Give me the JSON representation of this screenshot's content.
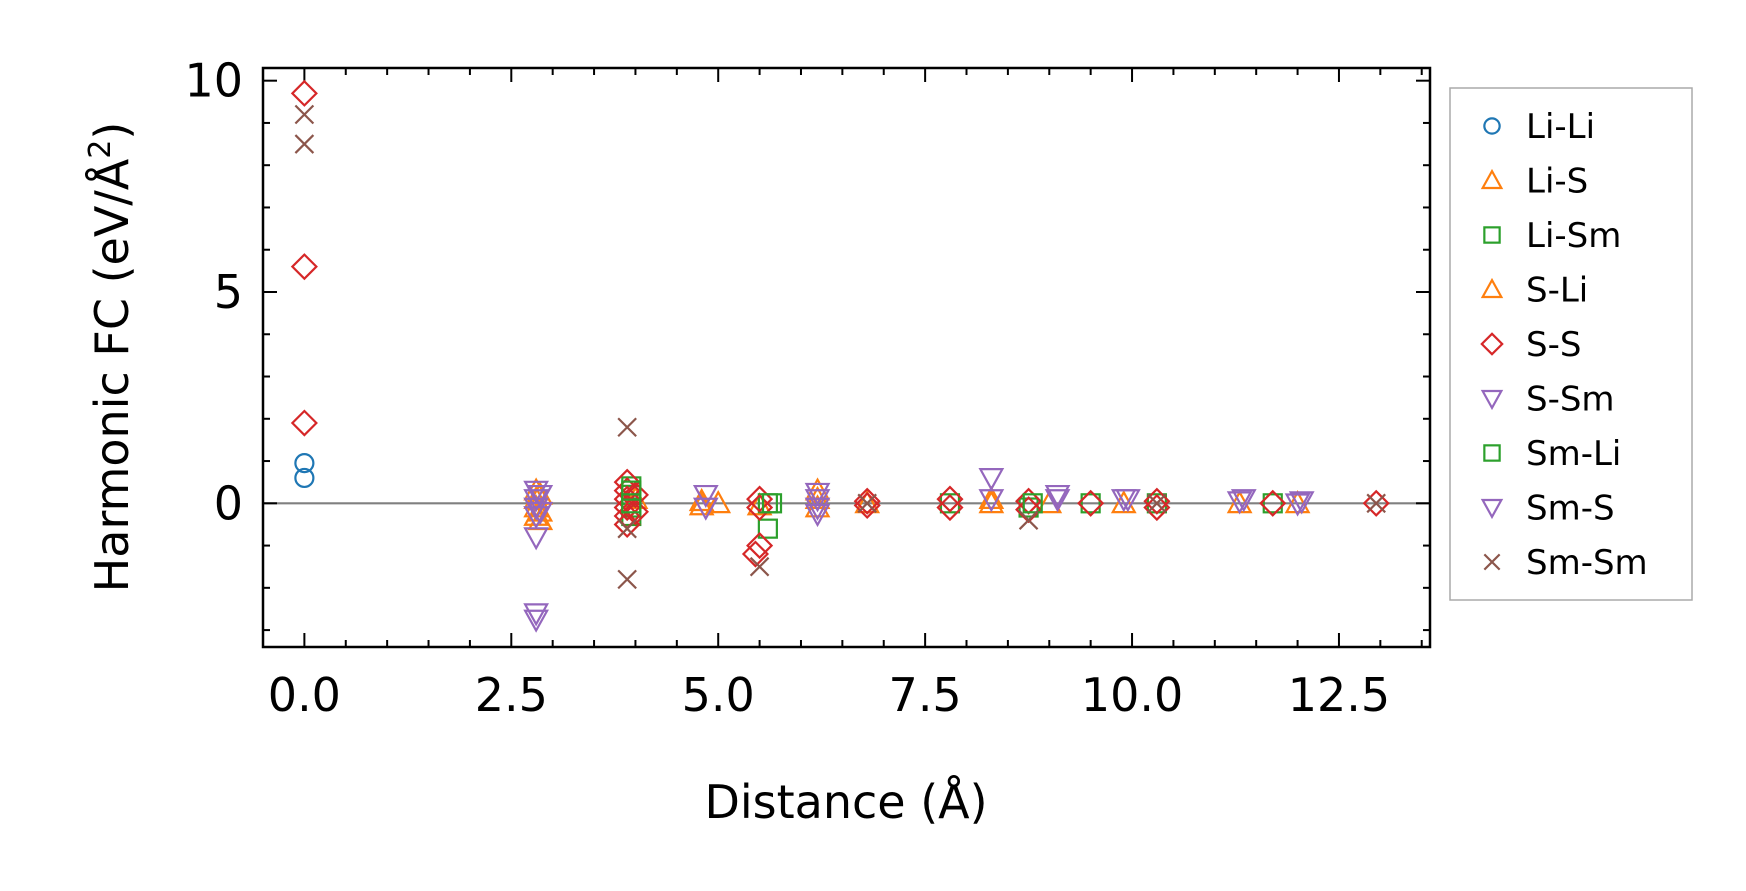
{
  "chart_data": {
    "type": "scatter",
    "title": "",
    "xlabel": "Distance (Å)",
    "ylabel": "Harmonic FC (eV/Å",
    "ylabel_sup": "2",
    "ylabel_end": ")",
    "xlim": [
      -0.5,
      13.6
    ],
    "ylim": [
      -3.4,
      10.3
    ],
    "xticks": [
      0.0,
      2.5,
      5.0,
      7.5,
      10.0,
      12.5
    ],
    "xtick_labels": [
      "0.0",
      "2.5",
      "5.0",
      "7.5",
      "10.0",
      "12.5"
    ],
    "yticks": [
      0,
      5,
      10
    ],
    "ytick_labels": [
      "0",
      "5",
      "10"
    ],
    "zero_line": true,
    "legend_position": "outside-right",
    "series": [
      {
        "name": "Li-Li",
        "marker": "circle",
        "color": "#1f77b4",
        "points": [
          [
            0.0,
            0.95
          ],
          [
            0.0,
            0.6
          ]
        ]
      },
      {
        "name": "Li-S",
        "marker": "triangle-up",
        "color": "#ff7f0e",
        "points": [
          [
            2.8,
            0.3
          ],
          [
            2.8,
            0.1
          ],
          [
            2.8,
            -0.1
          ],
          [
            2.8,
            -0.3
          ],
          [
            2.85,
            -0.4
          ],
          [
            4.8,
            -0.05
          ],
          [
            4.8,
            0.05
          ],
          [
            5.5,
            -0.05
          ],
          [
            6.2,
            0.1
          ],
          [
            6.2,
            -0.1
          ],
          [
            8.3,
            0.0
          ],
          [
            9.0,
            0.0
          ],
          [
            9.9,
            0.0
          ],
          [
            11.3,
            0.0
          ],
          [
            12.0,
            0.0
          ]
        ]
      },
      {
        "name": "Li-Sm",
        "marker": "square",
        "color": "#2ca02c",
        "points": [
          [
            3.95,
            0.4
          ],
          [
            3.95,
            0.2
          ],
          [
            3.95,
            -0.1
          ],
          [
            3.95,
            -0.3
          ],
          [
            5.6,
            0.0
          ],
          [
            5.6,
            -0.6
          ],
          [
            7.8,
            0.0
          ],
          [
            8.75,
            -0.1
          ],
          [
            9.5,
            0.0
          ],
          [
            10.3,
            0.0
          ],
          [
            11.7,
            0.0
          ]
        ]
      },
      {
        "name": "S-Li",
        "marker": "triangle-up",
        "color": "#ff7f0e",
        "points": [
          [
            2.85,
            0.2
          ],
          [
            2.85,
            -0.2
          ],
          [
            4.0,
            0.1
          ],
          [
            5.0,
            0.0
          ],
          [
            6.2,
            0.3
          ],
          [
            6.8,
            0.0
          ],
          [
            8.3,
            0.1
          ]
        ]
      },
      {
        "name": "S-S",
        "marker": "diamond",
        "color": "#d62728",
        "points": [
          [
            0.0,
            9.7
          ],
          [
            0.0,
            5.6
          ],
          [
            0.0,
            1.9
          ],
          [
            3.9,
            0.5
          ],
          [
            3.9,
            0.3
          ],
          [
            3.9,
            0.1
          ],
          [
            3.9,
            -0.1
          ],
          [
            3.9,
            -0.3
          ],
          [
            3.9,
            -0.5
          ],
          [
            4.0,
            0.2
          ],
          [
            4.0,
            -0.2
          ],
          [
            5.5,
            0.1
          ],
          [
            5.5,
            -0.1
          ],
          [
            5.5,
            -1.0
          ],
          [
            5.45,
            -1.2
          ],
          [
            6.8,
            0.05
          ],
          [
            6.8,
            -0.05
          ],
          [
            7.8,
            0.1
          ],
          [
            7.8,
            -0.1
          ],
          [
            8.75,
            0.05
          ],
          [
            8.75,
            -0.15
          ],
          [
            9.5,
            0.0
          ],
          [
            10.3,
            0.05
          ],
          [
            10.3,
            -0.1
          ],
          [
            11.7,
            0.0
          ],
          [
            12.95,
            0.0
          ]
        ]
      },
      {
        "name": "S-Sm",
        "marker": "triangle-down",
        "color": "#9467bd",
        "points": [
          [
            2.8,
            0.3
          ],
          [
            2.8,
            0.1
          ],
          [
            2.8,
            -0.1
          ],
          [
            2.8,
            -0.3
          ],
          [
            2.8,
            -0.8
          ],
          [
            2.8,
            -2.6
          ],
          [
            2.8,
            -2.75
          ],
          [
            4.85,
            0.2
          ],
          [
            4.85,
            -0.1
          ],
          [
            6.2,
            0.25
          ],
          [
            6.2,
            -0.25
          ],
          [
            8.3,
            0.6
          ],
          [
            8.3,
            0.1
          ],
          [
            9.1,
            0.2
          ],
          [
            9.9,
            0.1
          ],
          [
            11.3,
            0.05
          ],
          [
            12.0,
            0.0
          ]
        ]
      },
      {
        "name": "Sm-Li",
        "marker": "square",
        "color": "#2ca02c",
        "points": [
          [
            3.95,
            0.3
          ],
          [
            3.95,
            0.0
          ],
          [
            5.65,
            0.0
          ],
          [
            8.8,
            0.0
          ]
        ]
      },
      {
        "name": "Sm-S",
        "marker": "triangle-down",
        "color": "#9467bd",
        "points": [
          [
            2.85,
            0.2
          ],
          [
            2.85,
            -0.2
          ],
          [
            6.2,
            0.1
          ],
          [
            6.2,
            -0.1
          ],
          [
            9.1,
            0.1
          ],
          [
            9.95,
            0.1
          ],
          [
            11.35,
            0.1
          ],
          [
            12.05,
            0.05
          ]
        ]
      },
      {
        "name": "Sm-Sm",
        "marker": "x",
        "color": "#8c564b",
        "points": [
          [
            0.0,
            9.2
          ],
          [
            0.0,
            8.5
          ],
          [
            3.9,
            1.8
          ],
          [
            3.9,
            -0.6
          ],
          [
            3.9,
            -1.8
          ],
          [
            5.5,
            -1.5
          ],
          [
            6.8,
            0.0
          ],
          [
            8.75,
            -0.4
          ],
          [
            10.3,
            0.0
          ],
          [
            12.95,
            0.0
          ]
        ]
      }
    ]
  }
}
